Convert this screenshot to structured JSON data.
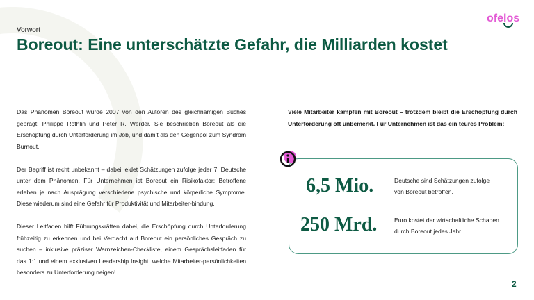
{
  "header": {
    "kicker": "Vorwort",
    "title": "Boreout: Eine unterschätzte Gefahr, die Milliarden kostet",
    "logo": "ofelos"
  },
  "left_paragraphs": [
    "Das Phänomen Boreout wurde 2007 von den Autoren des gleichnamigen Buches geprägt: Philippe Rothlin und Peter R. Werder. Sie beschrieben Boreout als die Erschöpfung durch Unterforderung im Job, und damit als den Gegenpol zum Syndrom Burnout.",
    "Der Begriff ist recht unbekannt – dabei leidet Schätzungen zufolge jeder 7. Deutsche unter dem Phänomen. Für Unternehmen ist Boreout ein Risikofaktor: Betroffene erleben je nach Ausprägung verschiedene psychische und körperliche Symptome. Diese wiederum sind eine Gefahr für Produktivität und Mitarbeiter-bindung.",
    "Dieser Leitfaden hilft Führungskräften dabei, die Erschöpfung durch Unterforderung frühzeitig zu erkennen und bei Verdacht auf Boreout ein persönliches Gespräch zu suchen – inklusive präziser Warnzeichen-Checkliste, einem Gesprächsleitfaden für das 1:1 und einem exklusiven Leadership Insight, welche Mitarbeiter-persönlichkeiten besonders zu Unterforderung neigen!"
  ],
  "intro": "Viele Mitarbeiter kämpfen mit Boreout – trotzdem bleibt die Erschöpfung durch Unterforderung oft unbemerkt. Für Unternehmen ist das ein teures Problem:",
  "stats": [
    {
      "value": "6,5 Mio.",
      "desc": "Deutsche sind Schätzungen zufolge von Boreout betroffen."
    },
    {
      "value": "250 Mrd.",
      "desc": "Euro kostet der wirtschaftliche Schaden durch Boreout jedes Jahr."
    }
  ],
  "page_number": "2",
  "colors": {
    "brand_green": "#0d5a43",
    "brand_pink": "#e35ad5"
  }
}
